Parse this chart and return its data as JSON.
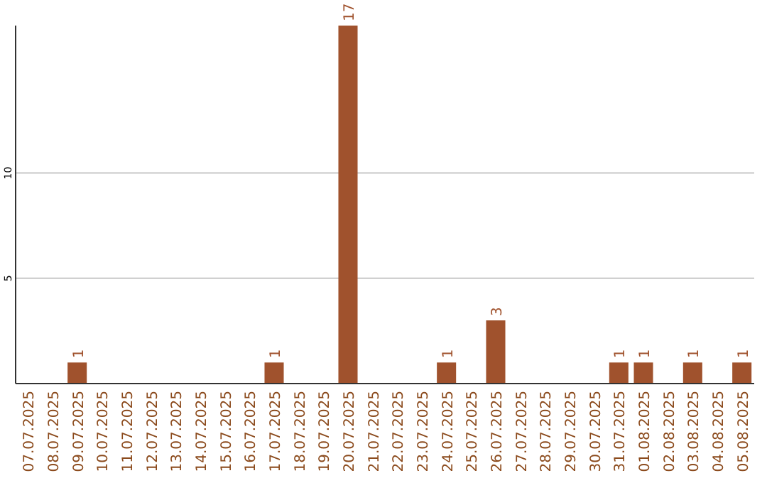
{
  "chart_data": {
    "type": "bar",
    "categories": [
      "07.07.2025",
      "08.07.2025",
      "09.07.2025",
      "10.07.2025",
      "11.07.2025",
      "12.07.2025",
      "13.07.2025",
      "14.07.2025",
      "15.07.2025",
      "16.07.2025",
      "17.07.2025",
      "18.07.2025",
      "19.07.2025",
      "20.07.2025",
      "21.07.2025",
      "22.07.2025",
      "23.07.2025",
      "24.07.2025",
      "25.07.2025",
      "26.07.2025",
      "27.07.2025",
      "28.07.2025",
      "29.07.2025",
      "30.07.2025",
      "31.07.2025",
      "01.08.2025",
      "02.08.2025",
      "03.08.2025",
      "04.08.2025",
      "05.08.2025"
    ],
    "values": [
      0,
      0,
      1,
      0,
      0,
      0,
      0,
      0,
      0,
      0,
      1,
      0,
      0,
      17,
      0,
      0,
      0,
      1,
      0,
      3,
      0,
      0,
      0,
      0,
      1,
      1,
      0,
      1,
      0,
      1
    ],
    "value_labels": [
      null,
      null,
      "1",
      null,
      null,
      null,
      null,
      null,
      null,
      null,
      "1",
      null,
      null,
      "17",
      null,
      null,
      null,
      "1",
      null,
      "3",
      null,
      null,
      null,
      null,
      "1",
      "1",
      null,
      "1",
      null,
      "1"
    ],
    "color": "#a0522d",
    "ylim": [
      0,
      17
    ],
    "yticks": [
      5,
      10
    ],
    "grid": "y"
  }
}
